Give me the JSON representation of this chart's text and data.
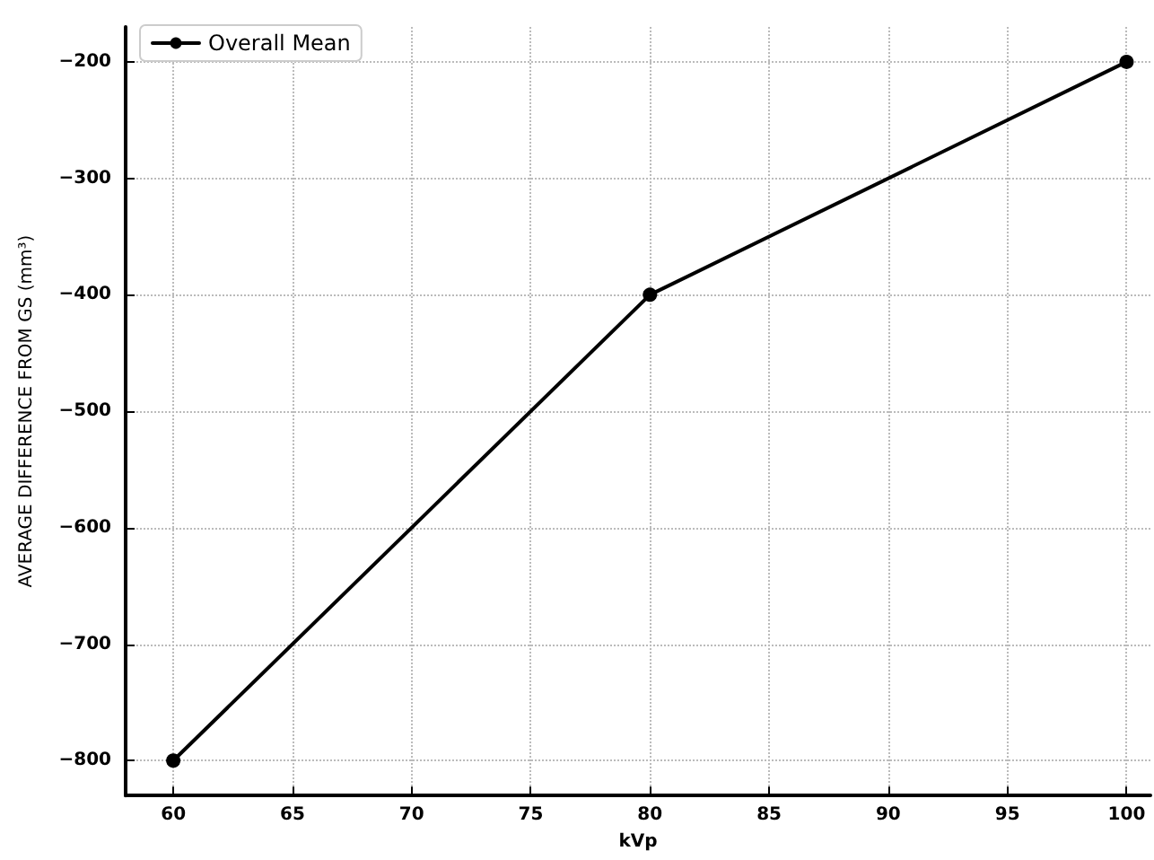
{
  "chart_data": {
    "type": "line",
    "xlabel": "kVp",
    "ylabel": "AVERAGE DIFFERENCE FROM GS (mm³)",
    "x": [
      60,
      80,
      100
    ],
    "series": [
      {
        "name": "Overall Mean",
        "color": "#000000",
        "values": [
          -800,
          -400,
          -200
        ]
      }
    ],
    "xlim": [
      58,
      101
    ],
    "xticks": [
      60,
      65,
      70,
      75,
      80,
      85,
      90,
      95,
      100
    ],
    "ylim": [
      -830,
      -170
    ],
    "yticks": [
      -800,
      -700,
      -600,
      -500,
      -400,
      -300,
      -200
    ],
    "grid": true,
    "legend": "top left",
    "marker": "circle",
    "line_style": "solid"
  }
}
